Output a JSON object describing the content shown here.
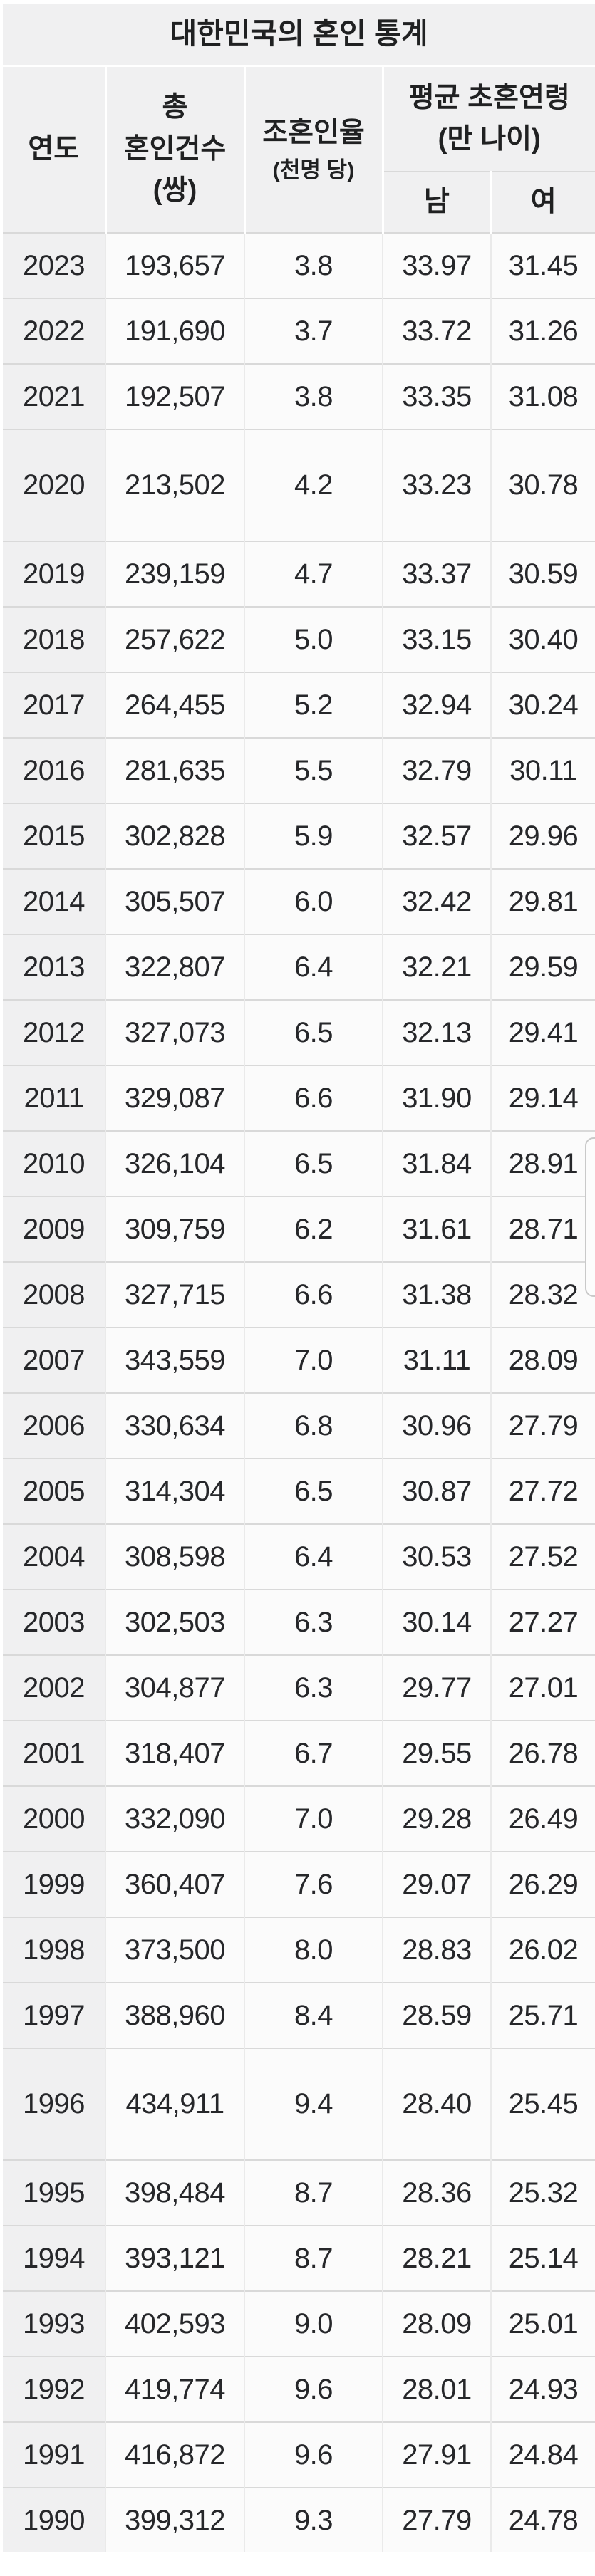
{
  "title": "대한민국의 혼인 통계",
  "columns": {
    "year": "연도",
    "marriages_line1": "총",
    "marriages_line2": "혼인건수",
    "marriages_line3": "(쌍)",
    "rate_line1": "조혼인율",
    "rate_line2": "(천명 당)",
    "age_group_line1": "평균 초혼연령",
    "age_group_line2": "(만 나이)",
    "male": "남",
    "female": "여"
  },
  "colors": {
    "header_bg": "#f0f0f1",
    "cell_bg": "#fbfbfb",
    "row_border": "#d9d9d9",
    "col_border": "#eaeaea",
    "text": "#202122"
  },
  "rows": [
    {
      "year": "2023",
      "marriages": "193,657",
      "rate": "3.8",
      "male": "33.97",
      "female": "31.45",
      "tall": false
    },
    {
      "year": "2022",
      "marriages": "191,690",
      "rate": "3.7",
      "male": "33.72",
      "female": "31.26",
      "tall": false
    },
    {
      "year": "2021",
      "marriages": "192,507",
      "rate": "3.8",
      "male": "33.35",
      "female": "31.08",
      "tall": false
    },
    {
      "year": "2020",
      "marriages": "213,502",
      "rate": "4.2",
      "male": "33.23",
      "female": "30.78",
      "tall": true
    },
    {
      "year": "2019",
      "marriages": "239,159",
      "rate": "4.7",
      "male": "33.37",
      "female": "30.59",
      "tall": false
    },
    {
      "year": "2018",
      "marriages": "257,622",
      "rate": "5.0",
      "male": "33.15",
      "female": "30.40",
      "tall": false
    },
    {
      "year": "2017",
      "marriages": "264,455",
      "rate": "5.2",
      "male": "32.94",
      "female": "30.24",
      "tall": false
    },
    {
      "year": "2016",
      "marriages": "281,635",
      "rate": "5.5",
      "male": "32.79",
      "female": "30.11",
      "tall": false
    },
    {
      "year": "2015",
      "marriages": "302,828",
      "rate": "5.9",
      "male": "32.57",
      "female": "29.96",
      "tall": false
    },
    {
      "year": "2014",
      "marriages": "305,507",
      "rate": "6.0",
      "male": "32.42",
      "female": "29.81",
      "tall": false
    },
    {
      "year": "2013",
      "marriages": "322,807",
      "rate": "6.4",
      "male": "32.21",
      "female": "29.59",
      "tall": false
    },
    {
      "year": "2012",
      "marriages": "327,073",
      "rate": "6.5",
      "male": "32.13",
      "female": "29.41",
      "tall": false
    },
    {
      "year": "2011",
      "marriages": "329,087",
      "rate": "6.6",
      "male": "31.90",
      "female": "29.14",
      "tall": false
    },
    {
      "year": "2010",
      "marriages": "326,104",
      "rate": "6.5",
      "male": "31.84",
      "female": "28.91",
      "tall": false
    },
    {
      "year": "2009",
      "marriages": "309,759",
      "rate": "6.2",
      "male": "31.61",
      "female": "28.71",
      "tall": false
    },
    {
      "year": "2008",
      "marriages": "327,715",
      "rate": "6.6",
      "male": "31.38",
      "female": "28.32",
      "tall": false
    },
    {
      "year": "2007",
      "marriages": "343,559",
      "rate": "7.0",
      "male": "31.11",
      "female": "28.09",
      "tall": false
    },
    {
      "year": "2006",
      "marriages": "330,634",
      "rate": "6.8",
      "male": "30.96",
      "female": "27.79",
      "tall": false
    },
    {
      "year": "2005",
      "marriages": "314,304",
      "rate": "6.5",
      "male": "30.87",
      "female": "27.72",
      "tall": false
    },
    {
      "year": "2004",
      "marriages": "308,598",
      "rate": "6.4",
      "male": "30.53",
      "female": "27.52",
      "tall": false
    },
    {
      "year": "2003",
      "marriages": "302,503",
      "rate": "6.3",
      "male": "30.14",
      "female": "27.27",
      "tall": false
    },
    {
      "year": "2002",
      "marriages": "304,877",
      "rate": "6.3",
      "male": "29.77",
      "female": "27.01",
      "tall": false
    },
    {
      "year": "2001",
      "marriages": "318,407",
      "rate": "6.7",
      "male": "29.55",
      "female": "26.78",
      "tall": false
    },
    {
      "year": "2000",
      "marriages": "332,090",
      "rate": "7.0",
      "male": "29.28",
      "female": "26.49",
      "tall": false
    },
    {
      "year": "1999",
      "marriages": "360,407",
      "rate": "7.6",
      "male": "29.07",
      "female": "26.29",
      "tall": false
    },
    {
      "year": "1998",
      "marriages": "373,500",
      "rate": "8.0",
      "male": "28.83",
      "female": "26.02",
      "tall": false
    },
    {
      "year": "1997",
      "marriages": "388,960",
      "rate": "8.4",
      "male": "28.59",
      "female": "25.71",
      "tall": false
    },
    {
      "year": "1996",
      "marriages": "434,911",
      "rate": "9.4",
      "male": "28.40",
      "female": "25.45",
      "tall": true
    },
    {
      "year": "1995",
      "marriages": "398,484",
      "rate": "8.7",
      "male": "28.36",
      "female": "25.32",
      "tall": false
    },
    {
      "year": "1994",
      "marriages": "393,121",
      "rate": "8.7",
      "male": "28.21",
      "female": "25.14",
      "tall": false
    },
    {
      "year": "1993",
      "marriages": "402,593",
      "rate": "9.0",
      "male": "28.09",
      "female": "25.01",
      "tall": false
    },
    {
      "year": "1992",
      "marriages": "419,774",
      "rate": "9.6",
      "male": "28.01",
      "female": "24.93",
      "tall": false
    },
    {
      "year": "1991",
      "marriages": "416,872",
      "rate": "9.6",
      "male": "27.91",
      "female": "24.84",
      "tall": false
    },
    {
      "year": "1990",
      "marriages": "399,312",
      "rate": "9.3",
      "male": "27.79",
      "female": "24.78",
      "tall": false
    }
  ]
}
